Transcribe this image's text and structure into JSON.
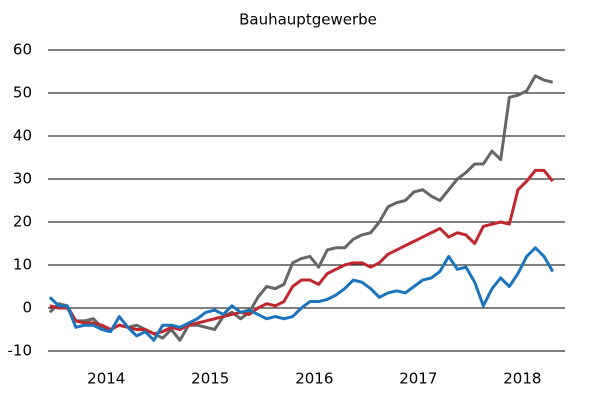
{
  "chart_data": {
    "type": "line",
    "title": "Bauhauptgewerbe",
    "x": [
      2013.958,
      2014.042,
      2014.125,
      2014.208,
      2014.292,
      2014.375,
      2014.458,
      2014.542,
      2014.625,
      2014.708,
      2014.792,
      2014.875,
      2014.958,
      2015.042,
      2015.125,
      2015.208,
      2015.292,
      2015.375,
      2015.458,
      2015.542,
      2015.625,
      2015.708,
      2015.792,
      2015.875,
      2015.958,
      2016.042,
      2016.125,
      2016.208,
      2016.292,
      2016.375,
      2016.458,
      2016.542,
      2016.625,
      2016.708,
      2016.792,
      2016.875,
      2016.958,
      2017.042,
      2017.125,
      2017.208,
      2017.292,
      2017.375,
      2017.458,
      2017.542,
      2017.625,
      2017.708,
      2017.792,
      2017.875,
      2017.958,
      2018.042,
      2018.125,
      2018.208,
      2018.292,
      2018.375,
      2018.458,
      2018.542,
      2018.625,
      2018.708,
      2018.792
    ],
    "series": [
      {
        "color": "#666666",
        "values": [
          -1,
          1,
          0.5,
          -3,
          -3,
          -2.5,
          -4.5,
          -5,
          -4,
          -4.5,
          -4,
          -5,
          -6,
          -7,
          -5,
          -7.5,
          -4,
          -4,
          -4.5,
          -5,
          -2,
          -1,
          -2.5,
          -1,
          2.5,
          5,
          4.5,
          5.5,
          10.5,
          11.5,
          12,
          9.5,
          13.5,
          14,
          14,
          16,
          17,
          17.5,
          20,
          23.5,
          24.5,
          25,
          27,
          27.5,
          26,
          25,
          27.5,
          30,
          31.5,
          33.5,
          33.5,
          36.5,
          34.5,
          49,
          49.5,
          50.5,
          54,
          53,
          52.5
        ]
      },
      {
        "color": "#c0282d",
        "values": [
          0.5,
          0,
          0,
          -3,
          -3.5,
          -3.5,
          -4,
          -5,
          -4,
          -4.5,
          -5,
          -5,
          -6,
          -5.5,
          -4.5,
          -5,
          -4,
          -3.5,
          -3,
          -2.5,
          -2,
          -1.5,
          -1,
          -1.5,
          0,
          1,
          0.5,
          1.5,
          5,
          6.5,
          6.5,
          5.5,
          8,
          9,
          10,
          10.5,
          10.5,
          9.5,
          10.5,
          12.5,
          13.5,
          14.5,
          15.5,
          16.5,
          17.5,
          18.5,
          16.5,
          17.5,
          17,
          15,
          19,
          19.5,
          20,
          19.5,
          27.5,
          29.5,
          32,
          32,
          29.5
        ]
      },
      {
        "color": "#1c75bc",
        "values": [
          2.5,
          0.5,
          0.5,
          -4.5,
          -4,
          -4,
          -5,
          -5.5,
          -2,
          -4.5,
          -6.5,
          -5.5,
          -7.5,
          -4,
          -4,
          -4.5,
          -3.5,
          -2.5,
          -1,
          -0.5,
          -1.5,
          0.5,
          -1,
          -0.5,
          -1.5,
          -2.5,
          -2,
          -2.5,
          -2,
          0,
          1.5,
          1.5,
          2,
          3,
          4.5,
          6.5,
          6,
          4.5,
          2.5,
          3.5,
          4,
          3.5,
          5,
          6.5,
          7,
          8.5,
          12,
          9,
          9.5,
          6,
          0.5,
          4.5,
          7,
          5,
          8,
          12,
          14,
          12,
          8.5
        ]
      }
    ],
    "xlim": [
      2013.94,
      2018.91
    ],
    "xticks": [
      {
        "value": 2014.5,
        "label": "2014"
      },
      {
        "value": 2015.5,
        "label": "2015"
      },
      {
        "value": 2016.5,
        "label": "2016"
      },
      {
        "value": 2017.5,
        "label": "2017"
      },
      {
        "value": 2018.5,
        "label": "2018"
      }
    ],
    "ylim": [
      -10,
      60
    ],
    "yticks": [
      -10,
      0,
      10,
      20,
      30,
      40,
      50,
      60
    ],
    "grid": true
  }
}
